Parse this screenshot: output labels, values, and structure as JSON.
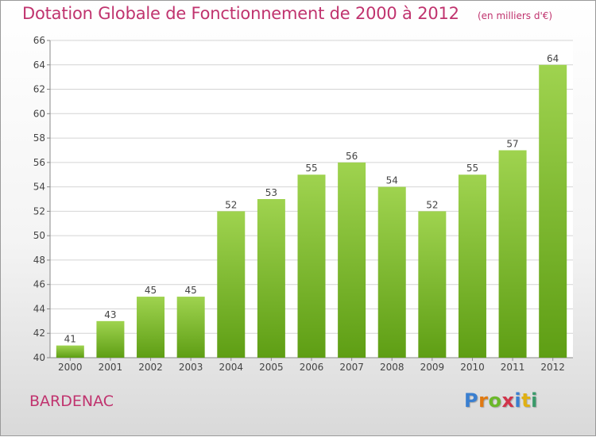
{
  "title": "Dotation Globale de Fonctionnement de 2000 à 2012",
  "unit": "(en milliers d'€)",
  "commune": "BARDENAC",
  "logo_text": "Proxiti",
  "colors": {
    "title": "#c0336e",
    "bar_top": "#9fd34f",
    "bar_bottom": "#5e9e14",
    "logo": [
      "#3a7fd0",
      "#e07a12",
      "#6bb82a",
      "#d1344a",
      "#3a7fd0",
      "#e0b012",
      "#3a9a6a"
    ]
  },
  "chart_data": {
    "type": "bar",
    "categories": [
      "2000",
      "2001",
      "2002",
      "2003",
      "2004",
      "2005",
      "2006",
      "2007",
      "2008",
      "2009",
      "2010",
      "2011",
      "2012"
    ],
    "values": [
      41,
      43,
      45,
      45,
      52,
      53,
      55,
      56,
      54,
      52,
      55,
      57,
      64
    ],
    "ylim": [
      40,
      66
    ],
    "yticks": [
      40,
      42,
      44,
      46,
      48,
      50,
      52,
      54,
      56,
      58,
      60,
      62,
      64,
      66
    ],
    "grid": true
  }
}
